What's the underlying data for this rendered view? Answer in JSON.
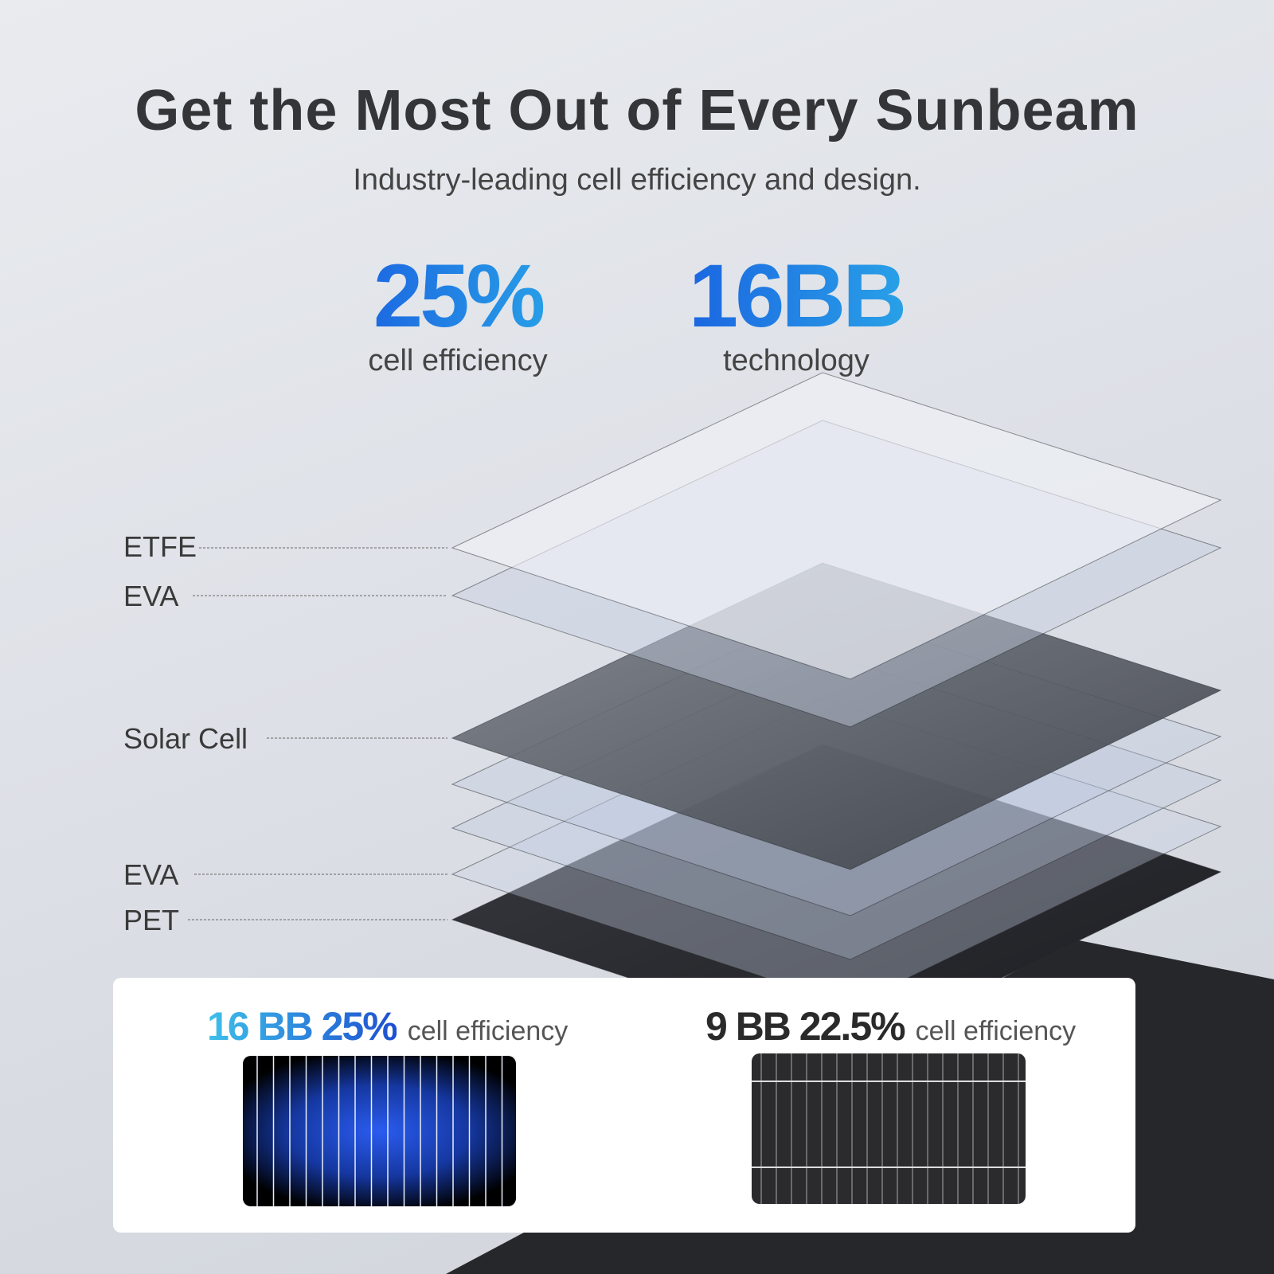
{
  "header": {
    "title": "Get the Most Out of Every Sunbeam",
    "subtitle": "Industry-leading cell efficiency and design."
  },
  "stats": [
    {
      "value": "25%",
      "label": "cell efficiency"
    },
    {
      "value": "16BB",
      "label": "technology"
    }
  ],
  "layers": [
    "ETFE",
    "EVA",
    "Solar Cell",
    "EVA",
    "PET"
  ],
  "comparison": {
    "left": {
      "highlight": "16 BB 25%",
      "label": "cell efficiency"
    },
    "right": {
      "highlight": "9 BB 22.5%",
      "label": "cell efficiency"
    }
  },
  "colors": {
    "accent_blue": "#1a5fe0",
    "accent_cyan": "#2aa8e8",
    "dark_text": "#333538"
  }
}
